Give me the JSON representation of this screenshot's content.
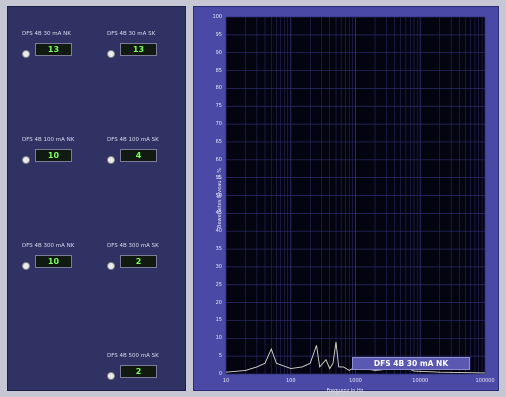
{
  "displays": [
    {
      "label": "DFS 4B 30 mA NK",
      "value": "13"
    },
    {
      "label": "DFS 4B 30 mA SK",
      "value": "13"
    },
    {
      "label": "DFS 4B 100 mA NK",
      "value": "10"
    },
    {
      "label": "DFS 4B 100 mA SK",
      "value": "4"
    },
    {
      "label": "DFS 4B 300 mA NK",
      "value": "10"
    },
    {
      "label": "DFS 4B 300 mA SK",
      "value": "2"
    },
    {
      "label": "DFS 4B 500 mA SK",
      "value": "2"
    }
  ],
  "colors": {
    "left_panel": "#303264",
    "right_panel": "#4a4aa6",
    "plot_bg": "#040410",
    "grid": "#2d2d6e",
    "led_text": "#7dff5a",
    "trace": "#d8d8cc"
  },
  "chart_data": {
    "type": "line",
    "title": "DFS 4B 30 mA NK",
    "xlabel": "Frequenz in Hz",
    "ylabel": "Bewertetes Niveau in %",
    "x_scale": "log",
    "xlim": [
      10,
      100000
    ],
    "ylim": [
      0,
      100
    ],
    "yticks": [
      "0",
      "5",
      "10",
      "15",
      "20",
      "25",
      "30",
      "35",
      "40",
      "45",
      "50",
      "55",
      "60",
      "65",
      "70",
      "75",
      "80",
      "85",
      "90",
      "95",
      "100"
    ],
    "xticks": [
      "10",
      "100",
      "1000",
      "10000",
      "100000"
    ],
    "series": [
      {
        "values": [
          [
            10,
            0.5
          ],
          [
            20,
            1
          ],
          [
            30,
            2
          ],
          [
            40,
            3
          ],
          [
            50,
            7
          ],
          [
            60,
            3
          ],
          [
            100,
            1.5
          ],
          [
            150,
            2
          ],
          [
            200,
            3
          ],
          [
            250,
            8
          ],
          [
            280,
            2
          ],
          [
            350,
            4
          ],
          [
            400,
            1.5
          ],
          [
            450,
            3
          ],
          [
            500,
            9
          ],
          [
            550,
            2
          ],
          [
            650,
            2
          ],
          [
            800,
            1
          ],
          [
            1000,
            2
          ],
          [
            2000,
            1
          ],
          [
            4000,
            1.5
          ],
          [
            5000,
            2.5
          ],
          [
            8000,
            0.8
          ],
          [
            20000,
            0.5
          ],
          [
            100000,
            0.3
          ]
        ]
      }
    ],
    "grid": true
  }
}
